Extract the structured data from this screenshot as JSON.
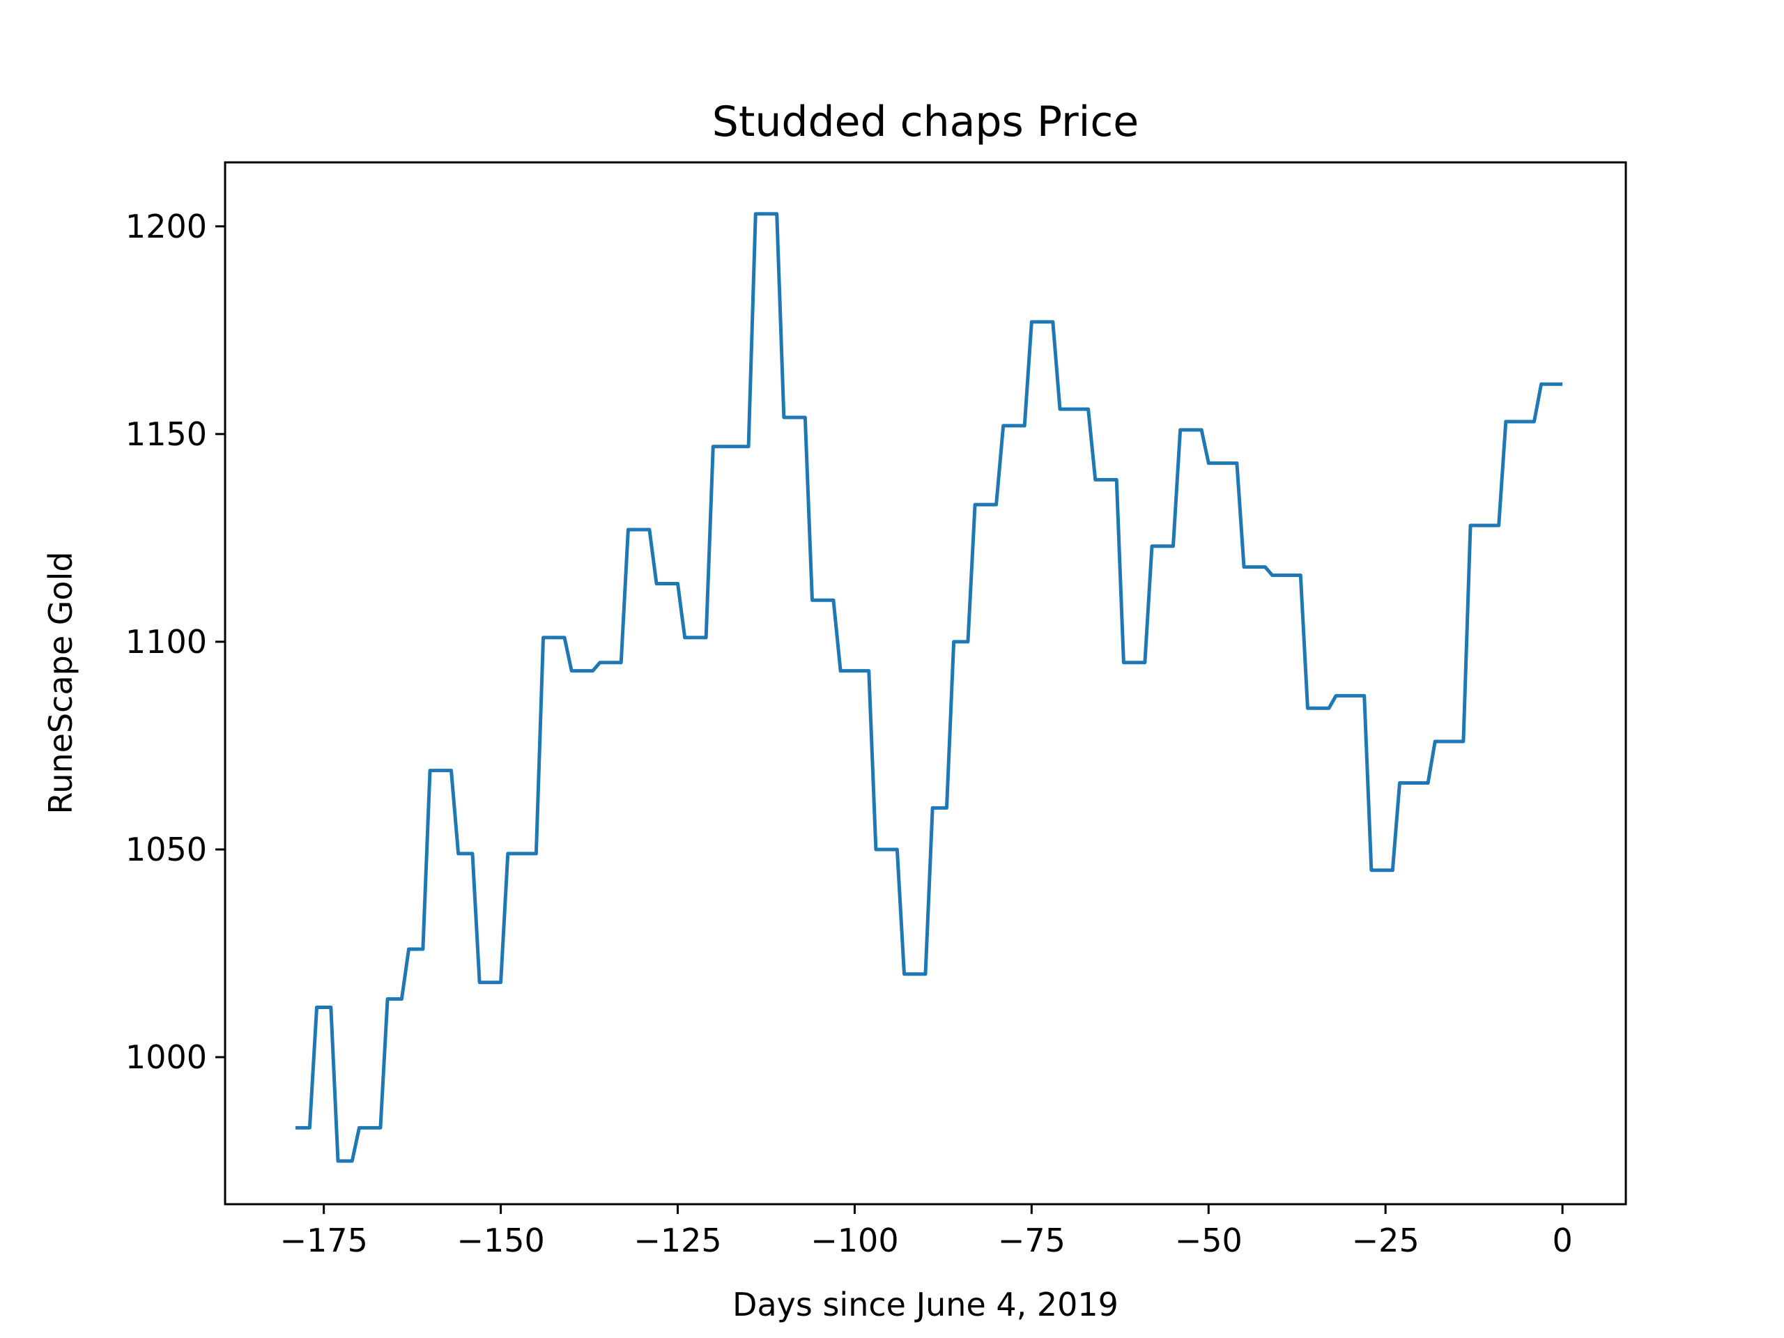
{
  "chart_data": {
    "type": "line",
    "title": "Studded chaps Price",
    "xlabel": "Days since June 4, 2019",
    "ylabel": "RuneScape Gold",
    "xlim": [
      -188.95,
      8.95
    ],
    "ylim": [
      964.6,
      1215.4
    ],
    "xticks": [
      -175,
      -150,
      -125,
      -100,
      -75,
      -50,
      -25,
      0
    ],
    "xtick_labels": [
      "−175",
      "−150",
      "−125",
      "−100",
      "−75",
      "−50",
      "−25",
      "0"
    ],
    "yticks": [
      1000,
      1050,
      1100,
      1150,
      1200
    ],
    "ytick_labels": [
      "1000",
      "1050",
      "1100",
      "1150",
      "1200"
    ],
    "grid": false,
    "line_color": "#1f77b4",
    "series": [
      {
        "x": [
          -179,
          -178,
          -177,
          -176,
          -175,
          -174,
          -173,
          -172,
          -171,
          -170,
          -169,
          -168,
          -167,
          -166,
          -165,
          -164,
          -163,
          -162,
          -161,
          -160,
          -159,
          -158,
          -157,
          -156,
          -155,
          -154,
          -153,
          -152,
          -151,
          -150,
          -149,
          -148,
          -147,
          -146,
          -145,
          -144,
          -143,
          -142,
          -141,
          -140,
          -139,
          -138,
          -137,
          -136,
          -135,
          -134,
          -133,
          -132,
          -131,
          -130,
          -129,
          -128,
          -127,
          -126,
          -125,
          -124,
          -123,
          -122,
          -121,
          -120,
          -119,
          -118,
          -117,
          -116,
          -115,
          -114,
          -113,
          -112,
          -111,
          -110,
          -109,
          -108,
          -107,
          -106,
          -105,
          -104,
          -103,
          -102,
          -101,
          -100,
          -99,
          -98,
          -97,
          -96,
          -95,
          -94,
          -93,
          -92,
          -91,
          -90,
          -89,
          -88,
          -87,
          -86,
          -85,
          -84,
          -83,
          -82,
          -81,
          -80,
          -79,
          -78,
          -77,
          -76,
          -75,
          -74,
          -73,
          -72,
          -71,
          -70,
          -69,
          -68,
          -67,
          -66,
          -65,
          -64,
          -63,
          -62,
          -61,
          -60,
          -59,
          -58,
          -57,
          -56,
          -55,
          -54,
          -53,
          -52,
          -51,
          -50,
          -49,
          -48,
          -47,
          -46,
          -45,
          -44,
          -43,
          -42,
          -41,
          -40,
          -39,
          -38,
          -37,
          -36,
          -35,
          -34,
          -33,
          -32,
          -31,
          -30,
          -29,
          -28,
          -27,
          -26,
          -25,
          -24,
          -23,
          -22,
          -21,
          -20,
          -19,
          -18,
          -17,
          -16,
          -15,
          -14,
          -13,
          -12,
          -11,
          -10,
          -9,
          -8,
          -7,
          -6,
          -5,
          -4,
          -3,
          -2,
          -1,
          0
        ],
        "values": [
          983,
          983,
          983,
          1012,
          1012,
          1012,
          975,
          975,
          975,
          983,
          983,
          983,
          983,
          1014,
          1014,
          1014,
          1026,
          1026,
          1026,
          1069,
          1069,
          1069,
          1069,
          1049,
          1049,
          1049,
          1018,
          1018,
          1018,
          1018,
          1049,
          1049,
          1049,
          1049,
          1049,
          1101,
          1101,
          1101,
          1101,
          1093,
          1093,
          1093,
          1093,
          1095,
          1095,
          1095,
          1095,
          1127,
          1127,
          1127,
          1127,
          1114,
          1114,
          1114,
          1114,
          1101,
          1101,
          1101,
          1101,
          1147,
          1147,
          1147,
          1147,
          1147,
          1147,
          1203,
          1203,
          1203,
          1203,
          1154,
          1154,
          1154,
          1154,
          1110,
          1110,
          1110,
          1110,
          1093,
          1093,
          1093,
          1093,
          1093,
          1050,
          1050,
          1050,
          1050,
          1020,
          1020,
          1020,
          1020,
          1060,
          1060,
          1060,
          1100,
          1100,
          1100,
          1133,
          1133,
          1133,
          1133,
          1152,
          1152,
          1152,
          1152,
          1177,
          1177,
          1177,
          1177,
          1156,
          1156,
          1156,
          1156,
          1156,
          1139,
          1139,
          1139,
          1139,
          1095,
          1095,
          1095,
          1095,
          1123,
          1123,
          1123,
          1123,
          1151,
          1151,
          1151,
          1151,
          1143,
          1143,
          1143,
          1143,
          1143,
          1118,
          1118,
          1118,
          1118,
          1116,
          1116,
          1116,
          1116,
          1116,
          1084,
          1084,
          1084,
          1084,
          1087,
          1087,
          1087,
          1087,
          1087,
          1045,
          1045,
          1045,
          1045,
          1066,
          1066,
          1066,
          1066,
          1066,
          1076,
          1076,
          1076,
          1076,
          1076,
          1128,
          1128,
          1128,
          1128,
          1128,
          1153,
          1153,
          1153,
          1153,
          1153,
          1162,
          1162,
          1162,
          1162
        ]
      }
    ]
  }
}
